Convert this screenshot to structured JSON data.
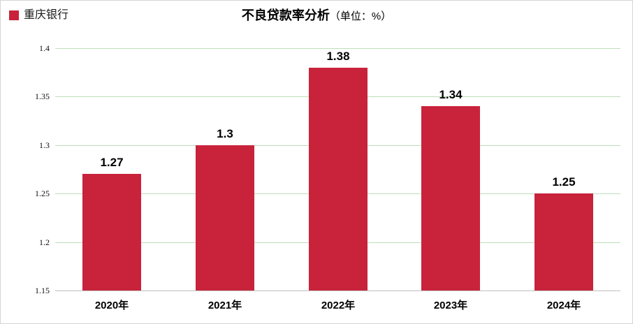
{
  "legend": {
    "label": "重庆银行",
    "swatch_icon": "legend-color-swatch"
  },
  "title": {
    "main": "不良贷款率分析",
    "unit": "（单位：%）"
  },
  "colors": {
    "bar": "#c8233a",
    "gridline": "#bedeba",
    "axis_line": "#bfbfbf",
    "text": "#000000",
    "border": "#d5d5d5"
  },
  "chart_data": {
    "type": "bar",
    "title": "不良贷款率分析",
    "unit_label": "（单位：%）",
    "series_name": "重庆银行",
    "categories": [
      "2020年",
      "2021年",
      "2022年",
      "2023年",
      "2024年"
    ],
    "values": [
      1.27,
      1.3,
      1.38,
      1.34,
      1.25
    ],
    "data_labels": [
      "1.27",
      "1.3",
      "1.38",
      "1.34",
      "1.25"
    ],
    "xlabel": "",
    "ylabel": "",
    "ylim": [
      1.15,
      1.4
    ],
    "y_ticks": [
      1.15,
      1.2,
      1.25,
      1.3,
      1.35,
      1.4
    ],
    "y_tick_labels": [
      "1.15",
      "1.2",
      "1.25",
      "1.3",
      "1.35",
      "1.4"
    ],
    "grid": true,
    "legend_position": "top-left"
  }
}
